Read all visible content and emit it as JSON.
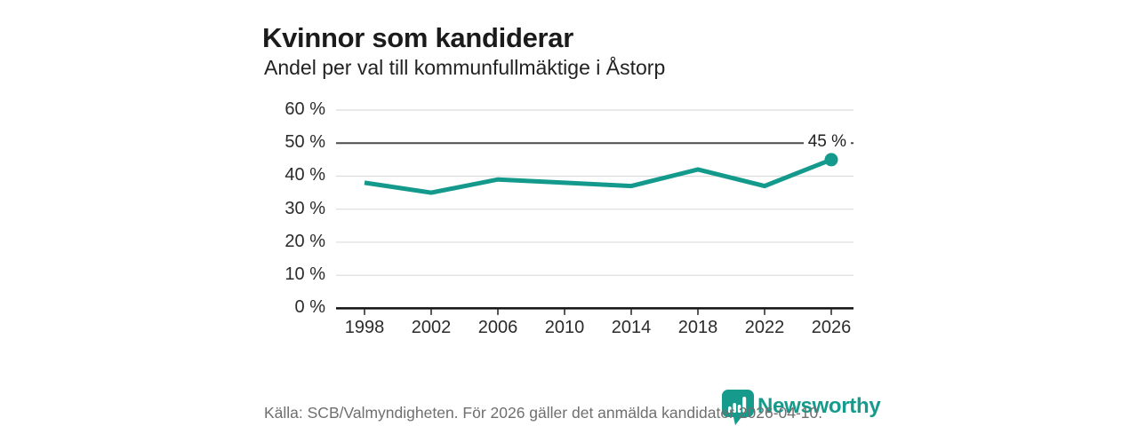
{
  "header": {
    "title": "Kvinnor som kandiderar",
    "subtitle": "Andel per val till kommunfullmäktige i Åstorp"
  },
  "chart_data": {
    "type": "line",
    "categories": [
      "1998",
      "2002",
      "2006",
      "2010",
      "2014",
      "2018",
      "2022",
      "2026"
    ],
    "values": [
      38,
      35,
      39,
      38,
      37,
      42,
      37,
      45
    ],
    "unit": "%",
    "title": "Kvinnor som kandiderar",
    "subtitle": "Andel per val till kommunfullmäktige i Åstorp",
    "xlabel": "",
    "ylabel": "",
    "ylim": [
      0,
      60
    ],
    "ytick_step": 10,
    "ytick_labels": [
      "0 %",
      "10 %",
      "20 %",
      "30 %",
      "40 %",
      "50 %",
      "60 %"
    ],
    "grid": true,
    "highlighted_gridline_value": 50,
    "end_point_label": "45 %",
    "line_color": "#149a8c",
    "light_gridline_color": "#dcdcdc",
    "dark_gridline_color": "#4b4b4b",
    "axis_color": "#111111"
  },
  "footer": {
    "source": "Källa: SCB/Valmyndigheten. För 2026 gäller det anmälda kandidater 2026-04-10."
  },
  "logo": {
    "text": "Newsworthy",
    "color": "#169a8b",
    "icon": "newsworthy-pin-barchart-icon"
  }
}
